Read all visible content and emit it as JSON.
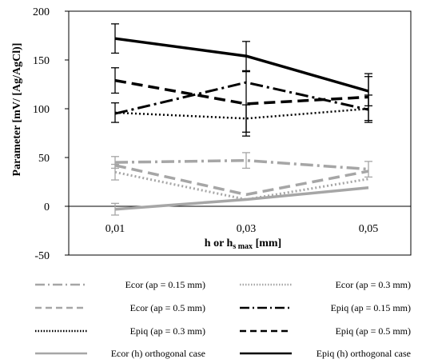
{
  "chart_data": {
    "type": "line",
    "categories": [
      "0,01",
      "0,03",
      "0,05"
    ],
    "ylabel": "Parameter [mV/ [Ag/AgCl)]",
    "xlabel_main": "h or h",
    "xlabel_sub": "s max",
    "xlabel_unit": " [mm]",
    "ylim": [
      -50,
      200
    ],
    "yticks": [
      -50,
      0,
      50,
      100,
      150,
      200
    ],
    "grid": false,
    "legend_position": "bottom",
    "series": [
      {
        "name": "Ecor (ap = 0.15 mm)",
        "values": [
          45,
          47,
          38
        ],
        "color": "#a6a6a6",
        "dash": "dashdot",
        "width": 3.5
      },
      {
        "name": "Ecor (ap = 0.3 mm)",
        "values": [
          35,
          7,
          28
        ],
        "color": "#a6a6a6",
        "dash": "dot",
        "width": 3
      },
      {
        "name": "Ecor (ap = 0.5 mm)",
        "values": [
          42,
          12,
          36
        ],
        "color": "#a6a6a6",
        "dash": "longdash",
        "width": 3.5
      },
      {
        "name": "Epiq (ap = 0.15 mm)",
        "values": [
          95,
          127,
          99
        ],
        "color": "#000000",
        "dash": "dashdot",
        "width": 3
      },
      {
        "name": "Epiq (ap = 0.3 mm)",
        "values": [
          96,
          90,
          100
        ],
        "color": "#000000",
        "dash": "dot",
        "width": 2.5
      },
      {
        "name": "Epiq (ap = 0.5 mm)",
        "values": [
          129,
          105,
          112
        ],
        "color": "#000000",
        "dash": "longdash",
        "width": 3.5
      },
      {
        "name": "Ecor (h) orthogonal case",
        "values": [
          -3,
          7,
          19
        ],
        "color": "#a6a6a6",
        "dash": "solid",
        "width": 3.5
      },
      {
        "name": "Epiq (h) orthogonal case",
        "values": [
          172,
          154,
          118
        ],
        "color": "#000000",
        "dash": "solid",
        "width": 3.5
      }
    ],
    "error_bars": [
      {
        "color": "#000000",
        "points": [
          {
            "x": 0,
            "y": 172,
            "lo": 157,
            "hi": 187
          },
          {
            "x": 1,
            "y": 154,
            "lo": 139,
            "hi": 169
          },
          {
            "x": 2,
            "y": 118,
            "lo": 103,
            "hi": 133
          }
        ]
      },
      {
        "color": "#000000",
        "points": [
          {
            "x": 0,
            "y": 129,
            "lo": 116,
            "hi": 142
          },
          {
            "x": 1,
            "y": 105,
            "lo": 72,
            "hi": 138
          },
          {
            "x": 2,
            "y": 112,
            "lo": 88,
            "hi": 136
          }
        ]
      },
      {
        "color": "#000000",
        "points": [
          {
            "x": 0,
            "y": 96,
            "lo": 86,
            "hi": 106
          },
          {
            "x": 1,
            "y": 90,
            "lo": 76,
            "hi": 104
          },
          {
            "x": 2,
            "y": 100,
            "lo": 86,
            "hi": 114
          }
        ]
      },
      {
        "color": "#a6a6a6",
        "points": [
          {
            "x": 0,
            "y": 45,
            "lo": 39,
            "hi": 51
          },
          {
            "x": 1,
            "y": 47,
            "lo": 39,
            "hi": 55
          },
          {
            "x": 2,
            "y": 38,
            "lo": 30,
            "hi": 46
          }
        ]
      },
      {
        "color": "#a6a6a6",
        "points": [
          {
            "x": 0,
            "y": 35,
            "lo": 27,
            "hi": 43
          }
        ]
      },
      {
        "color": "#a6a6a6",
        "points": [
          {
            "x": 0,
            "y": -3,
            "lo": -9,
            "hi": 3
          }
        ]
      }
    ]
  }
}
